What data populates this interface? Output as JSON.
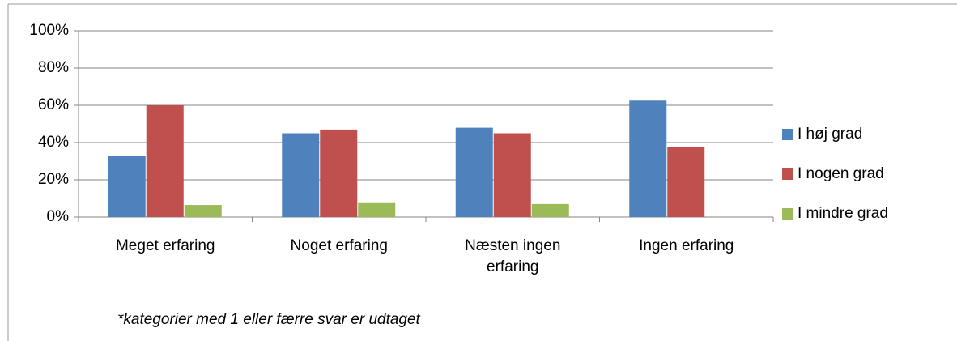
{
  "chart_data": {
    "type": "bar",
    "categories": [
      "Meget erfaring",
      "Noget erfaring",
      "Næsten ingen erfaring",
      "Ingen erfaring"
    ],
    "series": [
      {
        "name": "I høj grad",
        "color": "#4f81bd",
        "values": [
          33,
          45,
          48,
          62.5
        ]
      },
      {
        "name": "I nogen grad",
        "color": "#c0504d",
        "values": [
          60,
          47,
          45,
          37.5
        ]
      },
      {
        "name": "I mindre grad",
        "color": "#9bbb59",
        "values": [
          6.5,
          7.5,
          7,
          0
        ]
      }
    ],
    "ylim": [
      0,
      100
    ],
    "yticks": [
      {
        "value": 0,
        "label": "0%"
      },
      {
        "value": 20,
        "label": "20%"
      },
      {
        "value": 40,
        "label": "40%"
      },
      {
        "value": 60,
        "label": "60%"
      },
      {
        "value": 80,
        "label": "80%"
      },
      {
        "value": 100,
        "label": "100%"
      }
    ],
    "grid": true,
    "legend": "right",
    "footnote": "*kategorier med 1 eller færre svar er udtaget"
  }
}
